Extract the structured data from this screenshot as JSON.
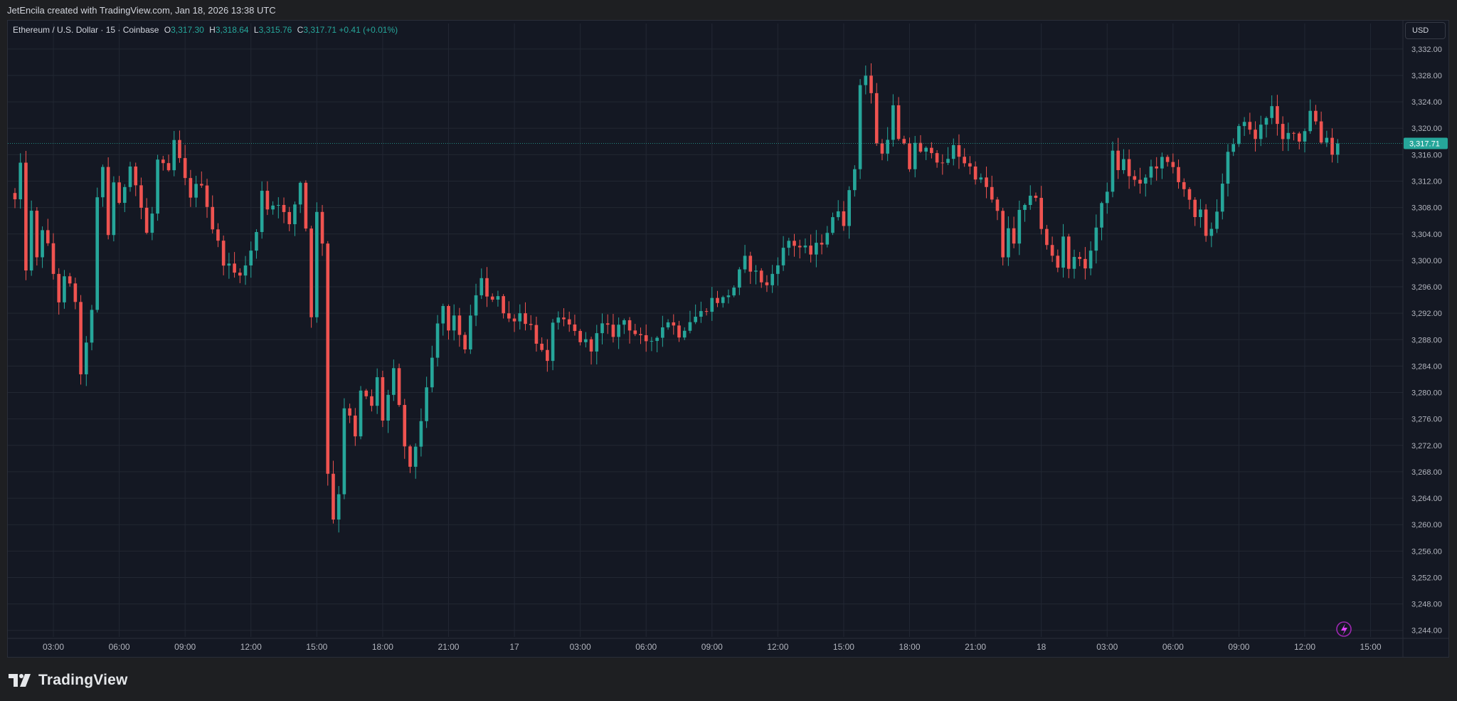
{
  "header": {
    "credit": "JetEncila created with TradingView.com, Jan 18, 2026 13:38 UTC"
  },
  "legend": {
    "symbol": "Ethereum / U.S. Dollar · 15 · Coinbase",
    "open_label": "O",
    "open": "3,317.30",
    "high_label": "H",
    "high": "3,318.64",
    "low_label": "L",
    "low": "3,315.76",
    "close_label": "C",
    "close": "3,317.71",
    "change": "+0.41 (+0.01%)"
  },
  "currency_button": "USD",
  "footer": {
    "brand": "TradingView",
    "logo_icon": "tradingview-logo-icon",
    "assistant_icon": "lightning-assistant-icon"
  },
  "colors": {
    "up": "#26a69a",
    "down": "#ef5350",
    "background": "#141823",
    "grid": "#222733",
    "text": "#b2b5be",
    "current_price_line": "#26a69a"
  },
  "chart_data": {
    "type": "candlestick",
    "interval": "15",
    "ylim": [
      3243,
      3335
    ],
    "y_ticks": [
      3332,
      3328,
      3324,
      3320,
      3316,
      3312,
      3308,
      3304,
      3300,
      3296,
      3292,
      3288,
      3284,
      3280,
      3276,
      3272,
      3268,
      3264,
      3260,
      3256,
      3252,
      3248,
      3244
    ],
    "y_tick_labels": [
      "3,332.00",
      "3,328.00",
      "3,324.00",
      "3,320.00",
      "3,316.00",
      "3,312.00",
      "3,308.00",
      "3,304.00",
      "3,300.00",
      "3,296.00",
      "3,292.00",
      "3,288.00",
      "3,284.00",
      "3,280.00",
      "3,276.00",
      "3,272.00",
      "3,268.00",
      "3,264.00",
      "3,260.00",
      "3,256.00",
      "3,252.00",
      "3,248.00",
      "3,244.00"
    ],
    "x_start": "2026-01-16T01:15",
    "x_end": "2026-01-18T15:30",
    "x_ticks": [
      "2026-01-16T03:00",
      "2026-01-16T06:00",
      "2026-01-16T09:00",
      "2026-01-16T12:00",
      "2026-01-16T15:00",
      "2026-01-16T18:00",
      "2026-01-16T21:00",
      "2026-01-17T00:00",
      "2026-01-17T03:00",
      "2026-01-17T06:00",
      "2026-01-17T09:00",
      "2026-01-17T12:00",
      "2026-01-17T15:00",
      "2026-01-17T18:00",
      "2026-01-17T21:00",
      "2026-01-18T00:00",
      "2026-01-18T03:00",
      "2026-01-18T06:00",
      "2026-01-18T09:00",
      "2026-01-18T12:00",
      "2026-01-18T15:00"
    ],
    "x_tick_labels": [
      "03:00",
      "06:00",
      "09:00",
      "12:00",
      "15:00",
      "18:00",
      "21:00",
      "17",
      "03:00",
      "06:00",
      "09:00",
      "12:00",
      "15:00",
      "18:00",
      "21:00",
      "18",
      "03:00",
      "06:00",
      "09:00",
      "12:00",
      "15:00"
    ],
    "current_price": 3317.71,
    "current_price_label": "3,317.71",
    "anchors": [
      [
        "2026-01-16T01:15",
        3309
      ],
      [
        "2026-01-16T01:30",
        3314
      ],
      [
        "2026-01-16T01:45",
        3299
      ],
      [
        "2026-01-16T02:00",
        3307
      ],
      [
        "2026-01-16T02:15",
        3300
      ],
      [
        "2026-01-16T02:30",
        3305
      ],
      [
        "2026-01-16T02:45",
        3302
      ],
      [
        "2026-01-16T03:00",
        3298
      ],
      [
        "2026-01-16T03:15",
        3294
      ],
      [
        "2026-01-16T03:30",
        3297
      ],
      [
        "2026-01-16T03:45",
        3296
      ],
      [
        "2026-01-16T04:00",
        3294
      ],
      [
        "2026-01-16T04:15",
        3282
      ],
      [
        "2026-01-16T04:30",
        3288
      ],
      [
        "2026-01-16T04:45",
        3292
      ],
      [
        "2026-01-16T05:00",
        3309
      ],
      [
        "2026-01-16T05:15",
        3314
      ],
      [
        "2026-01-16T05:30",
        3304
      ],
      [
        "2026-01-16T05:45",
        3312
      ],
      [
        "2026-01-16T06:00",
        3308
      ],
      [
        "2026-01-16T06:30",
        3315
      ],
      [
        "2026-01-16T07:00",
        3308
      ],
      [
        "2026-01-16T07:15",
        3304
      ],
      [
        "2026-01-16T07:30",
        3307
      ],
      [
        "2026-01-16T07:45",
        3315
      ],
      [
        "2026-01-16T08:15",
        3313
      ],
      [
        "2026-01-16T08:30",
        3318
      ],
      [
        "2026-01-16T09:00",
        3312
      ],
      [
        "2026-01-16T09:15",
        3310
      ],
      [
        "2026-01-16T09:45",
        3312
      ],
      [
        "2026-01-16T10:15",
        3305
      ],
      [
        "2026-01-16T10:45",
        3300
      ],
      [
        "2026-01-16T11:15",
        3298
      ],
      [
        "2026-01-16T11:45",
        3299
      ],
      [
        "2026-01-16T12:15",
        3304
      ],
      [
        "2026-01-16T12:30",
        3311
      ],
      [
        "2026-01-16T12:45",
        3308
      ],
      [
        "2026-01-16T13:15",
        3309
      ],
      [
        "2026-01-16T13:30",
        3307
      ],
      [
        "2026-01-16T13:45",
        3305
      ],
      [
        "2026-01-16T14:15",
        3312
      ],
      [
        "2026-01-16T14:30",
        3305
      ],
      [
        "2026-01-16T14:45",
        3292
      ],
      [
        "2026-01-16T15:00",
        3307
      ],
      [
        "2026-01-16T15:15",
        3303
      ],
      [
        "2026-01-16T15:30",
        3268
      ],
      [
        "2026-01-16T15:45",
        3261
      ],
      [
        "2026-01-16T16:00",
        3265
      ],
      [
        "2026-01-16T16:15",
        3278
      ],
      [
        "2026-01-16T16:30",
        3276
      ],
      [
        "2026-01-16T16:45",
        3273
      ],
      [
        "2026-01-16T17:00",
        3280
      ],
      [
        "2026-01-16T17:30",
        3278
      ],
      [
        "2026-01-16T17:45",
        3282
      ],
      [
        "2026-01-16T18:00",
        3276
      ],
      [
        "2026-01-16T18:30",
        3283
      ],
      [
        "2026-01-16T19:00",
        3272
      ],
      [
        "2026-01-16T19:15",
        3268
      ],
      [
        "2026-01-16T19:30",
        3272
      ],
      [
        "2026-01-16T20:00",
        3280
      ],
      [
        "2026-01-16T20:30",
        3290
      ],
      [
        "2026-01-16T20:45",
        3293
      ],
      [
        "2026-01-16T21:00",
        3289
      ],
      [
        "2026-01-16T21:15",
        3292
      ],
      [
        "2026-01-16T21:30",
        3288
      ],
      [
        "2026-01-16T21:45",
        3287
      ],
      [
        "2026-01-16T22:00",
        3291
      ],
      [
        "2026-01-16T22:15",
        3295
      ],
      [
        "2026-01-16T22:30",
        3297
      ],
      [
        "2026-01-16T22:45",
        3294
      ],
      [
        "2026-01-16T23:15",
        3295
      ],
      [
        "2026-01-16T23:30",
        3292
      ],
      [
        "2026-01-16T23:45",
        3291
      ],
      [
        "2026-01-17T00:15",
        3292
      ],
      [
        "2026-01-17T00:45",
        3290
      ],
      [
        "2026-01-17T01:00",
        3288
      ],
      [
        "2026-01-17T01:30",
        3284
      ],
      [
        "2026-01-17T01:45",
        3291
      ],
      [
        "2026-01-17T02:30",
        3290
      ],
      [
        "2026-01-17T03:00",
        3288
      ],
      [
        "2026-01-17T03:30",
        3287
      ],
      [
        "2026-01-17T04:00",
        3290
      ],
      [
        "2026-01-17T04:30",
        3289
      ],
      [
        "2026-01-17T05:00",
        3291
      ],
      [
        "2026-01-17T05:30",
        3289
      ],
      [
        "2026-01-17T06:00",
        3287
      ],
      [
        "2026-01-17T06:30",
        3289
      ],
      [
        "2026-01-17T07:00",
        3291
      ],
      [
        "2026-01-17T07:30",
        3289
      ],
      [
        "2026-01-17T08:00",
        3291
      ],
      [
        "2026-01-17T08:30",
        3292
      ],
      [
        "2026-01-17T09:00",
        3294
      ],
      [
        "2026-01-17T09:30",
        3294
      ],
      [
        "2026-01-17T10:00",
        3296
      ],
      [
        "2026-01-17T10:30",
        3300
      ],
      [
        "2026-01-17T11:00",
        3298
      ],
      [
        "2026-01-17T11:30",
        3296
      ],
      [
        "2026-01-17T12:00",
        3300
      ],
      [
        "2026-01-17T12:30",
        3303
      ],
      [
        "2026-01-17T13:00",
        3302
      ],
      [
        "2026-01-17T13:30",
        3301
      ],
      [
        "2026-01-17T14:00",
        3303
      ],
      [
        "2026-01-17T14:30",
        3306
      ],
      [
        "2026-01-17T14:45",
        3308
      ],
      [
        "2026-01-17T15:00",
        3306
      ],
      [
        "2026-01-17T15:15",
        3310
      ],
      [
        "2026-01-17T15:30",
        3314
      ],
      [
        "2026-01-17T15:45",
        3327
      ],
      [
        "2026-01-17T16:00",
        3328
      ],
      [
        "2026-01-17T16:15",
        3325
      ],
      [
        "2026-01-17T16:30",
        3318
      ],
      [
        "2026-01-17T16:45",
        3316
      ],
      [
        "2026-01-17T17:00",
        3319
      ],
      [
        "2026-01-17T17:15",
        3323
      ],
      [
        "2026-01-17T17:30",
        3318
      ],
      [
        "2026-01-17T17:45",
        3317
      ],
      [
        "2026-01-17T18:00",
        3314
      ],
      [
        "2026-01-17T18:15",
        3318
      ],
      [
        "2026-01-17T18:30",
        3316
      ],
      [
        "2026-01-17T19:00",
        3317
      ],
      [
        "2026-01-17T19:30",
        3314
      ],
      [
        "2026-01-17T20:00",
        3317
      ],
      [
        "2026-01-17T20:30",
        3315
      ],
      [
        "2026-01-17T21:00",
        3313
      ],
      [
        "2026-01-17T21:30",
        3311
      ],
      [
        "2026-01-17T22:00",
        3307
      ],
      [
        "2026-01-17T22:15",
        3300
      ],
      [
        "2026-01-17T22:30",
        3305
      ],
      [
        "2026-01-17T22:45",
        3303
      ],
      [
        "2026-01-17T23:00",
        3307
      ],
      [
        "2026-01-17T23:30",
        3309
      ],
      [
        "2026-01-17T23:45",
        3310
      ],
      [
        "2026-01-18T00:00",
        3305
      ],
      [
        "2026-01-18T00:15",
        3302
      ],
      [
        "2026-01-18T00:45",
        3299
      ],
      [
        "2026-01-18T01:00",
        3304
      ],
      [
        "2026-01-18T01:15",
        3299
      ],
      [
        "2026-01-18T01:45",
        3301
      ],
      [
        "2026-01-18T02:00",
        3298
      ],
      [
        "2026-01-18T02:15",
        3302
      ],
      [
        "2026-01-18T02:30",
        3305
      ],
      [
        "2026-01-18T03:00",
        3311
      ],
      [
        "2026-01-18T03:15",
        3316
      ],
      [
        "2026-01-18T03:30",
        3314
      ],
      [
        "2026-01-18T03:45",
        3315
      ],
      [
        "2026-01-18T04:00",
        3313
      ],
      [
        "2026-01-18T04:30",
        3311
      ],
      [
        "2026-01-18T05:00",
        3314
      ],
      [
        "2026-01-18T05:30",
        3315
      ],
      [
        "2026-01-18T06:00",
        3314
      ],
      [
        "2026-01-18T06:30",
        3311
      ],
      [
        "2026-01-18T07:00",
        3306
      ],
      [
        "2026-01-18T07:15",
        3307
      ],
      [
        "2026-01-18T07:30",
        3304
      ],
      [
        "2026-01-18T07:45",
        3305
      ],
      [
        "2026-01-18T08:00",
        3308
      ],
      [
        "2026-01-18T08:15",
        3311
      ],
      [
        "2026-01-18T08:30",
        3316
      ],
      [
        "2026-01-18T08:45",
        3317
      ],
      [
        "2026-01-18T09:00",
        3321
      ],
      [
        "2026-01-18T09:30",
        3320
      ],
      [
        "2026-01-18T09:45",
        3318
      ],
      [
        "2026-01-18T10:00",
        3321
      ],
      [
        "2026-01-18T10:30",
        3323
      ],
      [
        "2026-01-18T10:45",
        3320
      ],
      [
        "2026-01-18T11:00",
        3318
      ],
      [
        "2026-01-18T11:30",
        3320
      ],
      [
        "2026-01-18T11:45",
        3318
      ],
      [
        "2026-01-18T12:00",
        3320
      ],
      [
        "2026-01-18T12:15",
        3323
      ],
      [
        "2026-01-18T12:30",
        3321
      ],
      [
        "2026-01-18T12:45",
        3318
      ],
      [
        "2026-01-18T13:00",
        3319
      ],
      [
        "2026-01-18T13:15",
        3316
      ],
      [
        "2026-01-18T13:30",
        3317.71
      ]
    ]
  }
}
